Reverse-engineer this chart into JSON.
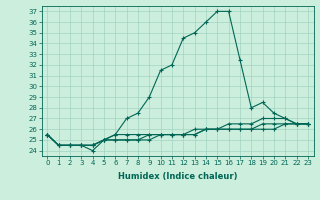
{
  "title": "",
  "xlabel": "Humidex (Indice chaleur)",
  "bg_color": "#cceedd",
  "grid_color": "#99ccbb",
  "line_color": "#006655",
  "xlim": [
    -0.5,
    23.5
  ],
  "ylim": [
    23.5,
    37.5
  ],
  "yticks": [
    24,
    25,
    26,
    27,
    28,
    29,
    30,
    31,
    32,
    33,
    34,
    35,
    36,
    37
  ],
  "xticks": [
    0,
    1,
    2,
    3,
    4,
    5,
    6,
    7,
    8,
    9,
    10,
    11,
    12,
    13,
    14,
    15,
    16,
    17,
    18,
    19,
    20,
    21,
    22,
    23
  ],
  "series": [
    [
      25.5,
      24.5,
      24.5,
      24.5,
      24.0,
      25.0,
      25.5,
      27.0,
      27.5,
      29.0,
      31.5,
      32.0,
      34.5,
      35.0,
      36.0,
      37.0,
      37.0,
      32.5,
      28.0,
      28.5,
      27.5,
      27.0,
      26.5,
      26.5
    ],
    [
      25.5,
      24.5,
      24.5,
      24.5,
      24.5,
      25.0,
      25.5,
      25.5,
      25.5,
      25.5,
      25.5,
      25.5,
      25.5,
      26.0,
      26.0,
      26.0,
      26.0,
      26.0,
      26.0,
      26.0,
      26.0,
      26.5,
      26.5,
      26.5
    ],
    [
      25.5,
      24.5,
      24.5,
      24.5,
      24.5,
      25.0,
      25.0,
      25.0,
      25.0,
      25.5,
      25.5,
      25.5,
      25.5,
      25.5,
      26.0,
      26.0,
      26.0,
      26.0,
      26.0,
      26.5,
      26.5,
      26.5,
      26.5,
      26.5
    ],
    [
      25.5,
      24.5,
      24.5,
      24.5,
      24.5,
      25.0,
      25.0,
      25.0,
      25.0,
      25.0,
      25.5,
      25.5,
      25.5,
      25.5,
      26.0,
      26.0,
      26.5,
      26.5,
      26.5,
      27.0,
      27.0,
      27.0,
      26.5,
      26.5
    ]
  ],
  "tick_fontsize": 5,
  "xlabel_fontsize": 6,
  "marker": "+",
  "markersize": 3,
  "linewidth": 0.8
}
